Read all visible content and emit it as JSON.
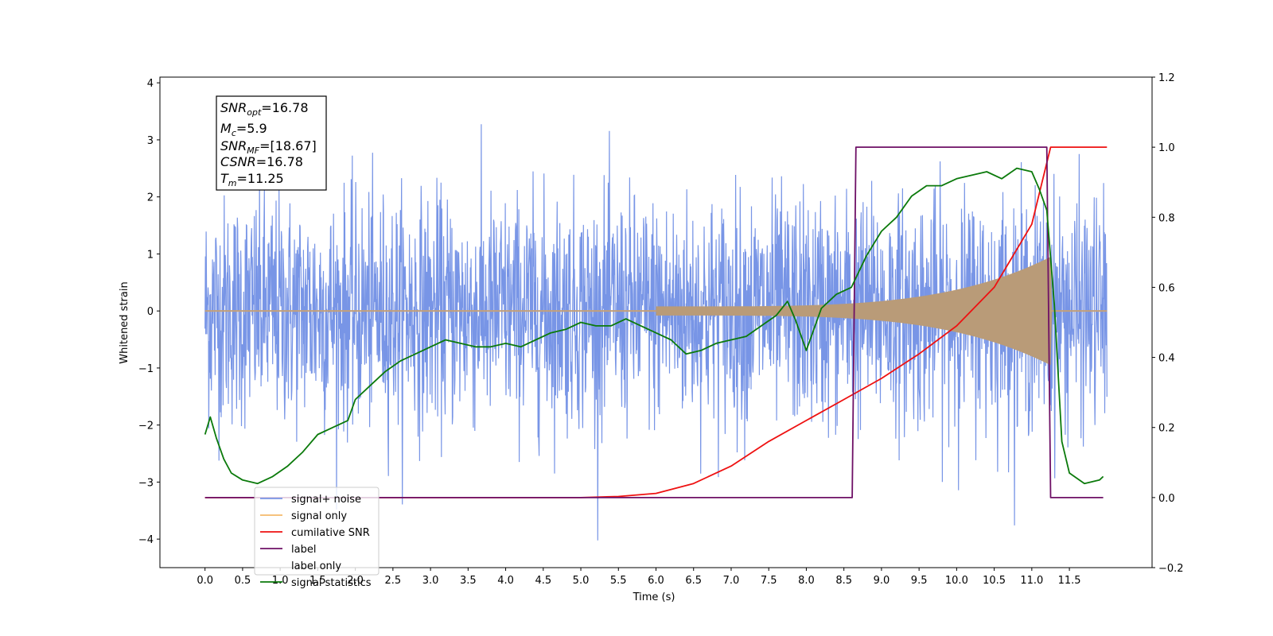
{
  "chart_data": {
    "type": "line",
    "xlabel": "Time (s)",
    "ylabel_left": "Whitened strain",
    "ylabel_right": "",
    "xlim": [
      -0.6,
      12.6
    ],
    "ylim_left": [
      -4.5,
      4.1
    ],
    "ylim_right": [
      -0.2,
      1.2
    ],
    "x_ticks": [
      "0.0",
      "0.5",
      "1.0",
      "1.5",
      "2.0",
      "2.5",
      "3.0",
      "3.5",
      "4.0",
      "4.5",
      "5.0",
      "5.5",
      "6.0",
      "6.5",
      "7.0",
      "7.5",
      "8.0",
      "8.5",
      "9.0",
      "9.5",
      "10.0",
      "10.5",
      "11.0",
      "11.5"
    ],
    "y_ticks_left": [
      "−4",
      "−3",
      "−2",
      "−1",
      "0",
      "1",
      "2",
      "3",
      "4"
    ],
    "y_ticks_right": [
      "−0.2",
      "0.0",
      "0.2",
      "0.4",
      "0.6",
      "0.8",
      "1.0",
      "1.2"
    ],
    "grid": false,
    "legend_position": "lower-left",
    "annotation": {
      "snr_opt": {
        "sym": "SNR",
        "sub": "opt",
        "value": "=16.78"
      },
      "mc": {
        "sym": "M",
        "sub": "c",
        "value": "=5.9"
      },
      "snr_mf": {
        "sym": "SNR",
        "sub": "MF",
        "value": "=[18.67]"
      },
      "csnr": {
        "sym": "CSNR",
        "sub": "",
        "value": "=16.78"
      },
      "tm": {
        "sym": "T",
        "sub": "m",
        "value": "=11.25"
      }
    },
    "series": [
      {
        "name": "signal+ noise",
        "color": "#7895e6",
        "axis": "left",
        "description_values": {
          "t_start": 0.0,
          "t_end": 12.0,
          "approx_std": 1.0,
          "peak_max": 3.7,
          "peak_min": -4.1
        }
      },
      {
        "name": "signal only",
        "color": "#f4b96b",
        "axis": "left",
        "description_values": {
          "t_start": 0.0,
          "t_end": 12.0,
          "onset": 6.0,
          "merger_time": 11.25,
          "peak_amplitude": 0.95
        }
      },
      {
        "name": "cumilative SNR",
        "color": "#ee1111",
        "axis": "right",
        "x": [
          0,
          5,
          5.5,
          6,
          6.5,
          7,
          7.5,
          8,
          8.5,
          9,
          9.5,
          10,
          10.5,
          11,
          11.25,
          12
        ],
        "values": [
          0,
          0,
          0.003,
          0.012,
          0.04,
          0.09,
          0.16,
          0.22,
          0.28,
          0.34,
          0.41,
          0.49,
          0.6,
          0.78,
          1.0,
          1.0
        ]
      },
      {
        "name": "label",
        "color": "#6e1066",
        "axis": "right",
        "x": [
          0,
          8.61,
          8.66,
          11.2,
          11.25,
          11.95
        ],
        "values": [
          0,
          0,
          1,
          1,
          0,
          0
        ]
      },
      {
        "name": "label only",
        "color": "#ffffff",
        "axis": "right",
        "x": [],
        "values": []
      },
      {
        "name": "signal statistics",
        "color": "#0b7a0b",
        "axis": "right",
        "x": [
          0,
          0.07,
          0.15,
          0.25,
          0.35,
          0.5,
          0.7,
          0.9,
          1.1,
          1.3,
          1.5,
          1.7,
          1.9,
          2.0,
          2.2,
          2.4,
          2.6,
          2.8,
          3.0,
          3.2,
          3.4,
          3.6,
          3.8,
          4.0,
          4.2,
          4.4,
          4.6,
          4.8,
          5.0,
          5.2,
          5.4,
          5.6,
          5.8,
          6.0,
          6.2,
          6.4,
          6.6,
          6.8,
          7.0,
          7.2,
          7.4,
          7.6,
          7.75,
          7.85,
          8.0,
          8.2,
          8.4,
          8.6,
          8.8,
          9.0,
          9.2,
          9.4,
          9.6,
          9.8,
          10.0,
          10.2,
          10.4,
          10.6,
          10.8,
          11.0,
          11.1,
          11.2,
          11.3,
          11.4,
          11.5,
          11.7,
          11.9,
          11.95
        ],
        "values": [
          0.18,
          0.23,
          0.17,
          0.11,
          0.07,
          0.05,
          0.04,
          0.06,
          0.09,
          0.13,
          0.18,
          0.2,
          0.22,
          0.28,
          0.32,
          0.36,
          0.39,
          0.41,
          0.43,
          0.45,
          0.44,
          0.43,
          0.43,
          0.44,
          0.43,
          0.45,
          0.47,
          0.48,
          0.5,
          0.49,
          0.49,
          0.51,
          0.49,
          0.47,
          0.45,
          0.41,
          0.42,
          0.44,
          0.45,
          0.46,
          0.49,
          0.52,
          0.56,
          0.51,
          0.42,
          0.54,
          0.58,
          0.6,
          0.69,
          0.76,
          0.8,
          0.86,
          0.89,
          0.89,
          0.91,
          0.92,
          0.93,
          0.91,
          0.94,
          0.93,
          0.88,
          0.82,
          0.55,
          0.16,
          0.07,
          0.04,
          0.05,
          0.06
        ]
      }
    ]
  }
}
